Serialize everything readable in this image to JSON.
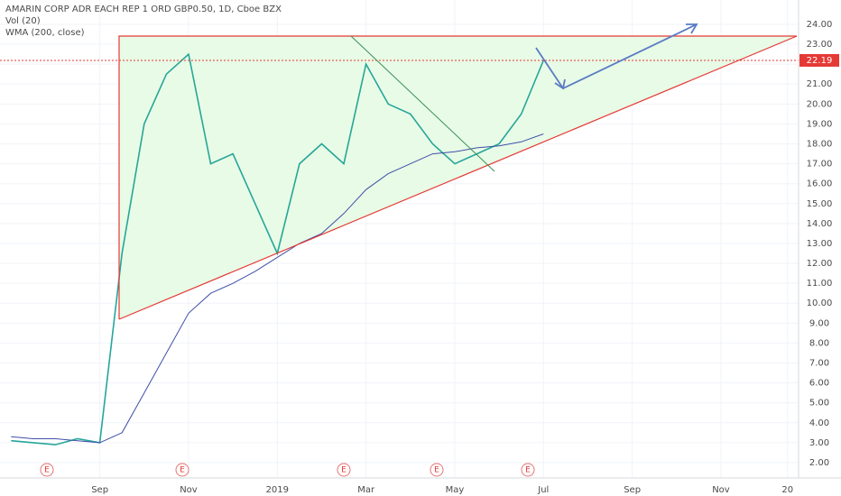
{
  "chart_data": {
    "type": "line",
    "title": "AMARIN CORP ADR EACH REP 1 ORD GBP0.50, 1D, Cboe BZX",
    "indicators": [
      "Vol (20)",
      "WMA (200, close)"
    ],
    "categories": [
      null,
      null,
      null,
      null,
      "Sep",
      null,
      null,
      null,
      "Nov",
      null,
      null,
      null,
      "2019",
      null,
      null,
      null,
      "Mar",
      null,
      null,
      null,
      "May",
      null,
      null,
      null,
      "Jul",
      null,
      null,
      null,
      "Sep",
      null,
      null,
      null,
      "Nov",
      null,
      null,
      "20"
    ],
    "series": [
      {
        "name": "Price",
        "color": "#26a69a",
        "values": [
          3.1,
          3.0,
          2.9,
          3.2,
          3.0,
          12.5,
          19.0,
          21.5,
          22.5,
          17.0,
          17.5,
          15.0,
          12.5,
          17.0,
          18.0,
          17.0,
          22.0,
          20.0,
          19.5,
          18.0,
          17.0,
          17.5,
          18.0,
          19.5,
          22.19,
          null,
          null,
          null,
          null,
          null,
          null,
          null,
          null,
          null,
          null,
          null
        ]
      },
      {
        "name": "WMA",
        "color": "#3f4fa8",
        "values": [
          3.3,
          3.2,
          3.2,
          3.1,
          3.0,
          3.5,
          5.5,
          7.5,
          9.5,
          10.5,
          11.0,
          11.6,
          12.3,
          13.0,
          13.5,
          14.5,
          15.7,
          16.5,
          17.0,
          17.5,
          17.6,
          17.8,
          17.9,
          18.1,
          18.5,
          null,
          null,
          null,
          null,
          null,
          null,
          null,
          null,
          null,
          null,
          null
        ]
      }
    ],
    "last_price": 22.19,
    "earnings_markers": [
      "E",
      "E",
      "E",
      "E",
      "E"
    ],
    "ylim": [
      1.23,
      25.22
    ],
    "yticks": [
      {
        "value": 2,
        "label": "2.00"
      },
      {
        "value": 3,
        "label": "3.00"
      },
      {
        "value": 4,
        "label": "4.00"
      },
      {
        "value": 5,
        "label": "5.00"
      },
      {
        "value": 6,
        "label": "6.00"
      },
      {
        "value": 7,
        "label": "7.00"
      },
      {
        "value": 8,
        "label": "8.00"
      },
      {
        "value": 9,
        "label": "9.00"
      },
      {
        "value": 10,
        "label": "10.00"
      },
      {
        "value": 11,
        "label": "11.00"
      },
      {
        "value": 12,
        "label": "12.00"
      },
      {
        "value": 13,
        "label": "13.00"
      },
      {
        "value": 14,
        "label": "14.00"
      },
      {
        "value": 15,
        "label": "15.00"
      },
      {
        "value": 16,
        "label": "16.00"
      },
      {
        "value": 17,
        "label": "17.00"
      },
      {
        "value": 18,
        "label": "18.00"
      },
      {
        "value": 19,
        "label": "19.00"
      },
      {
        "value": 20,
        "label": "20.00"
      },
      {
        "value": 21,
        "label": "21.00"
      },
      {
        "value": 22,
        "label": "22.00"
      },
      {
        "value": 23,
        "label": "23.00"
      },
      {
        "value": 24,
        "label": "24.00"
      }
    ],
    "grid": true
  }
}
